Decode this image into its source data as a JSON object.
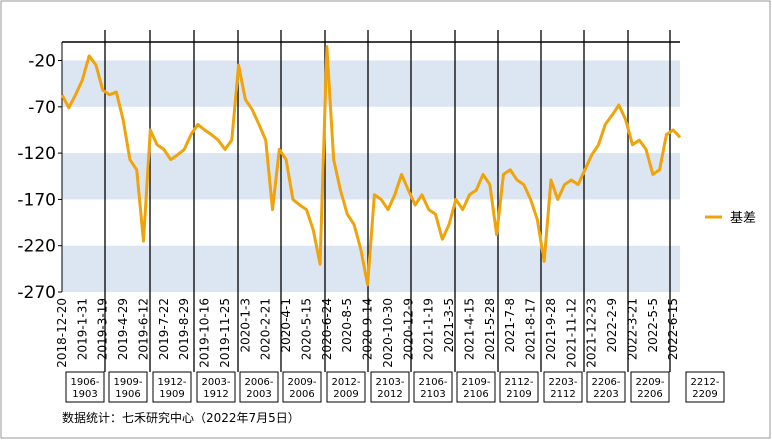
{
  "chart_data": {
    "type": "line",
    "categories": [
      "2018-12-20",
      null,
      null,
      "2019-1-31",
      null,
      null,
      "2019-3-19",
      null,
      null,
      "2019-4-29",
      null,
      null,
      "2019-6-12",
      null,
      null,
      "2019-7-22",
      null,
      null,
      "2019-8-29",
      null,
      null,
      "2019-10-16",
      null,
      null,
      "2019-11-25",
      null,
      null,
      "2020-1-3",
      null,
      null,
      "2020-2-21",
      null,
      null,
      "2020-4-1",
      null,
      null,
      "2020-5-15",
      null,
      null,
      "2020-6-24",
      null,
      null,
      "2020-8-5",
      null,
      null,
      "2020-9-14",
      null,
      null,
      "2020-10-30",
      null,
      null,
      "2020-12-9",
      null,
      null,
      "2021-1-19",
      null,
      null,
      "2021-3-5",
      null,
      null,
      "2021-4-15",
      null,
      null,
      "2021-5-28",
      null,
      null,
      "2021-7-8",
      null,
      null,
      "2021-8-17",
      null,
      null,
      "2021-9-28",
      null,
      null,
      "2021-11-12",
      null,
      null,
      "2021-12-23",
      null,
      null,
      "2022-2-9",
      null,
      null,
      "2022-3-21",
      null,
      null,
      "2022-5-5",
      null,
      null,
      "2022-6-15",
      null
    ],
    "series": [
      {
        "name": "基差",
        "color": "#f0a30a",
        "values": [
          -57,
          -71,
          -57,
          -41,
          -15,
          -25,
          -52,
          -57,
          -54,
          -84,
          -127,
          -138,
          -215,
          -95,
          -111,
          -116,
          -127,
          -122,
          -116,
          -100,
          -89,
          -95,
          -100,
          -106,
          -116,
          -106,
          -25,
          -62,
          -73,
          -89,
          -106,
          -181,
          -116,
          -127,
          -170,
          -176,
          -181,
          -203,
          -240,
          -5,
          -127,
          -160,
          -186,
          -197,
          -224,
          -262,
          -165,
          -170,
          -181,
          -165,
          -143,
          -160,
          -176,
          -165,
          -181,
          -186,
          -213,
          -197,
          -170,
          -181,
          -165,
          -160,
          -143,
          -154,
          -208,
          -143,
          -138,
          -149,
          -154,
          -170,
          -192,
          -237,
          -149,
          -170,
          -154,
          -149,
          -154,
          -138,
          -122,
          -111,
          -89,
          -79,
          -68,
          -84,
          -111,
          -106,
          -116,
          -143,
          -138,
          -100,
          -95,
          -103
        ]
      }
    ],
    "ylim": [
      -270,
      0
    ],
    "yticks": [
      -270,
      -220,
      -170,
      -120,
      -70,
      -20
    ],
    "contracts": [
      [
        "1906-",
        "1903"
      ],
      [
        "1909-",
        "1906"
      ],
      [
        "1912-",
        "1909"
      ],
      [
        "2003-",
        "1912"
      ],
      [
        "2006-",
        "2003"
      ],
      [
        "2009-",
        "2006"
      ],
      [
        "2012-",
        "2009"
      ],
      [
        "2103-",
        "2012"
      ],
      [
        "2106-",
        "2103"
      ],
      [
        "2109-",
        "2106"
      ],
      [
        "2112-",
        "2109"
      ],
      [
        "2203-",
        "2112"
      ],
      [
        "2206-",
        "2203"
      ],
      [
        "2209-",
        "2206"
      ],
      [
        "2212-",
        "2209"
      ]
    ],
    "source": "数据统计：七禾研究中心（2022年7月5日）"
  }
}
